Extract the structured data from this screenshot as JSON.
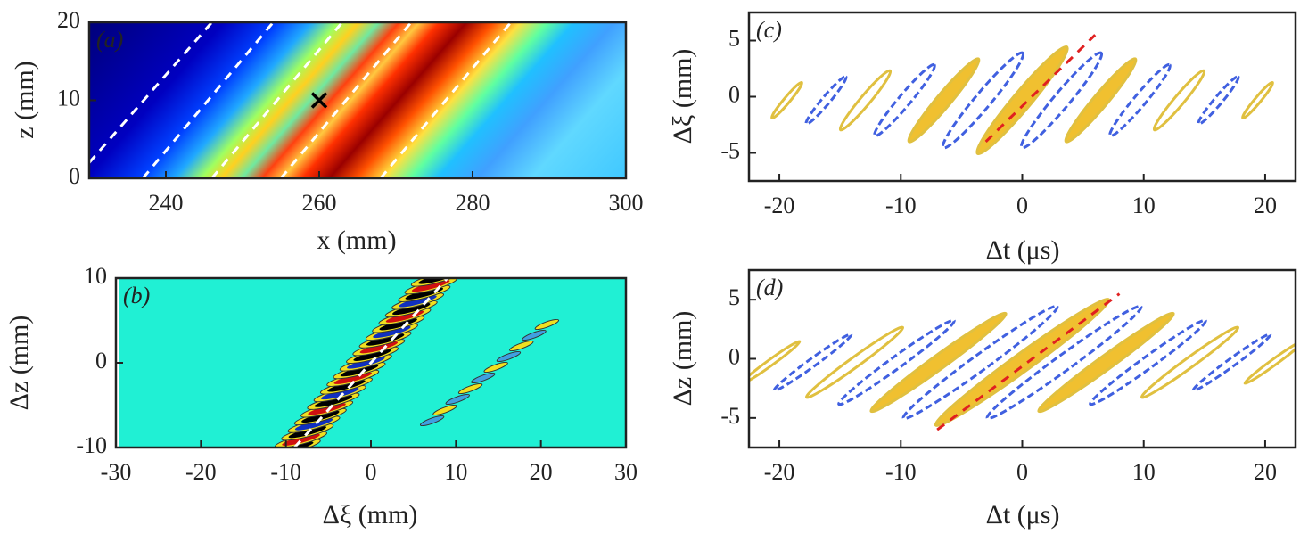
{
  "chart_data": [
    {
      "type": "heatmap",
      "panel": "(a)",
      "xlabel": "x (mm)",
      "ylabel": "z (mm)",
      "xlim": [
        230,
        300
      ],
      "ylim": [
        0,
        20
      ],
      "xticks": [
        240,
        260,
        280,
        300
      ],
      "yticks": [
        0,
        10,
        20
      ],
      "lines": [
        {
          "color": "#ffffff",
          "x": [
            230,
            246
          ],
          "y": [
            2,
            20
          ]
        },
        {
          "color": "#ffffff",
          "x": [
            237,
            254
          ],
          "y": [
            0,
            20
          ]
        },
        {
          "color": "#ffffff",
          "x": [
            246,
            263
          ],
          "y": [
            0,
            20
          ]
        },
        {
          "color": "#ffffff",
          "x": [
            255,
            272
          ],
          "y": [
            0,
            20
          ]
        },
        {
          "color": "#ffffff",
          "x": [
            268,
            285
          ],
          "y": [
            0,
            20
          ]
        }
      ],
      "markers": [
        {
          "x": 260,
          "y": 10,
          "color": "#000000"
        }
      ]
    },
    {
      "type": "contour",
      "panel": "(b)",
      "xlabel": "Δξ (mm)",
      "ylabel": "Δz (mm)",
      "xlim": [
        -30,
        30
      ],
      "ylim": [
        -10,
        10
      ],
      "xticks": [
        -30,
        -20,
        -10,
        0,
        10,
        20,
        30
      ],
      "yticks": [
        -10,
        0,
        10
      ],
      "lines": [
        {
          "color": "#ffffff",
          "x": [
            -9,
            9
          ],
          "y": [
            -10,
            10
          ]
        }
      ],
      "markers": []
    },
    {
      "type": "contour",
      "panel": "(c)",
      "xlabel": "Δt (μs)",
      "ylabel": "Δξ (mm)",
      "xlim": [
        -22.5,
        22.5
      ],
      "ylim": [
        -7.5,
        7.5
      ],
      "xticks": [
        -20,
        -10,
        0,
        10,
        20
      ],
      "yticks": [
        -5,
        0,
        5
      ],
      "lines": [
        {
          "color": "#e02020",
          "x": [
            -3,
            6
          ],
          "y": [
            -4,
            5.5
          ]
        }
      ],
      "markers": []
    },
    {
      "type": "contour",
      "panel": "(d)",
      "xlabel": "Δt (μs)",
      "ylabel": "Δz (mm)",
      "xlim": [
        -22.5,
        22.5
      ],
      "ylim": [
        -7.5,
        7.5
      ],
      "xticks": [
        -20,
        -10,
        0,
        10,
        20
      ],
      "yticks": [
        -5,
        0,
        5
      ],
      "lines": [
        {
          "color": "#e02020",
          "x": [
            -7,
            8
          ],
          "y": [
            -6,
            5.5
          ]
        }
      ],
      "markers": []
    }
  ]
}
